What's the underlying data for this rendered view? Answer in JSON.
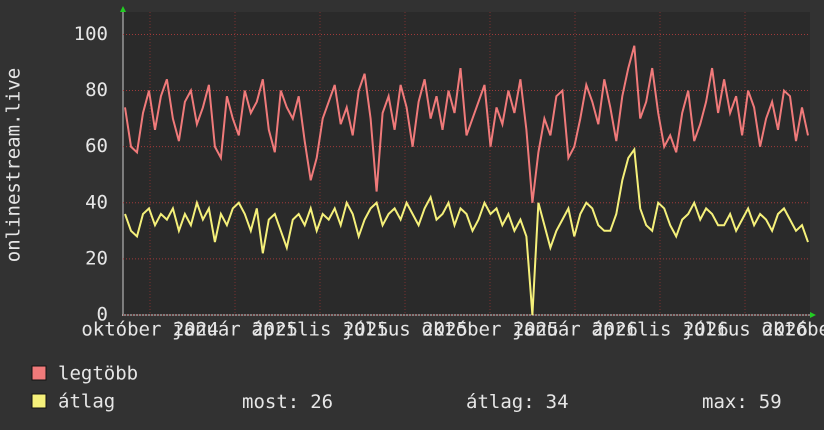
{
  "chart_data": {
    "type": "line",
    "y_label": "onlinestream.live",
    "ylim": [
      0,
      108
    ],
    "yticks": [
      0,
      20,
      40,
      60,
      80,
      100
    ],
    "grid": true,
    "x_labels": [
      "október 2024",
      "január 2025",
      "április 2025",
      "július 2025",
      "október 2025",
      "január 2026",
      "április 2026",
      "július 2026",
      "október 2026"
    ],
    "series": [
      {
        "name": "legtöbb",
        "color": "#f07a7a",
        "values": [
          74,
          60,
          58,
          72,
          80,
          66,
          78,
          84,
          70,
          62,
          76,
          80,
          68,
          74,
          82,
          60,
          56,
          78,
          70,
          64,
          80,
          72,
          76,
          84,
          66,
          58,
          80,
          74,
          70,
          78,
          62,
          48,
          56,
          70,
          76,
          82,
          68,
          74,
          64,
          80,
          86,
          70,
          44,
          72,
          78,
          66,
          82,
          74,
          60,
          76,
          84,
          70,
          78,
          66,
          80,
          72,
          88,
          64,
          70,
          76,
          82,
          60,
          74,
          68,
          80,
          72,
          84,
          66,
          40,
          58,
          70,
          64,
          78,
          80,
          56,
          60,
          70,
          82,
          76,
          68,
          84,
          74,
          62,
          78,
          88,
          96,
          70,
          76,
          88,
          72,
          60,
          64,
          58,
          72,
          80,
          62,
          68,
          76,
          88,
          72,
          84,
          72,
          78,
          64,
          80,
          74,
          60,
          70,
          76,
          66,
          80,
          78,
          62,
          74,
          64
        ]
      },
      {
        "name": "átlag",
        "color": "#f5f07a",
        "values": [
          36,
          30,
          28,
          36,
          38,
          32,
          36,
          34,
          38,
          30,
          36,
          32,
          40,
          34,
          38,
          26,
          36,
          32,
          38,
          40,
          36,
          30,
          38,
          22,
          34,
          36,
          30,
          24,
          34,
          36,
          32,
          38,
          30,
          36,
          34,
          38,
          32,
          40,
          36,
          28,
          34,
          38,
          40,
          32,
          36,
          38,
          34,
          40,
          36,
          32,
          38,
          42,
          34,
          36,
          40,
          32,
          38,
          36,
          30,
          34,
          40,
          36,
          38,
          32,
          36,
          30,
          34,
          28,
          0,
          40,
          32,
          24,
          30,
          34,
          38,
          28,
          36,
          40,
          38,
          32,
          30,
          30,
          36,
          48,
          56,
          59,
          38,
          32,
          30,
          40,
          38,
          32,
          28,
          34,
          36,
          40,
          34,
          38,
          36,
          32,
          32,
          36,
          30,
          34,
          38,
          32,
          36,
          34,
          30,
          36,
          38,
          34,
          30,
          32,
          26
        ]
      }
    ],
    "legend_stats": [
      {
        "label": "most:",
        "value": 26
      },
      {
        "label": "átlag:",
        "value": 34
      },
      {
        "label": "max:",
        "value": 59
      }
    ]
  }
}
